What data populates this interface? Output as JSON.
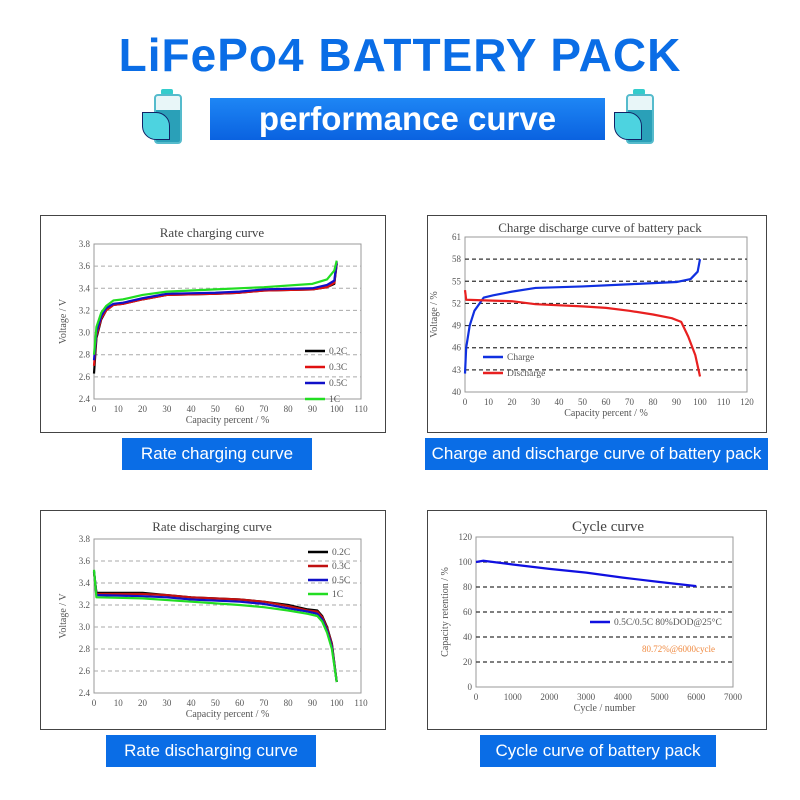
{
  "header": {
    "title": "LiFePo4 BATTERY PACK",
    "subtitle": "performance curve",
    "icon": "battery-leaf-icon"
  },
  "captions": [
    "Rate charging curve",
    "Charge and discharge curve of battery pack",
    "Rate discharging curve",
    "Cycle curve of battery pack"
  ],
  "chart_data": [
    {
      "type": "line",
      "title": "Rate charging curve",
      "xlabel": "Capacity percent / %",
      "ylabel": "Voltage / V",
      "xlim": [
        0,
        110
      ],
      "ylim": [
        2.4,
        3.8
      ],
      "xticks": [
        0,
        10,
        20,
        30,
        40,
        50,
        60,
        70,
        80,
        90,
        100,
        110
      ],
      "yticks": [
        2.4,
        2.6,
        2.8,
        3.0,
        3.2,
        3.4,
        3.6,
        3.8
      ],
      "grid": "horizontal dashed",
      "legend": "bottom-right",
      "series": [
        {
          "name": "0.2C",
          "color": "#000000",
          "points": [
            [
              0,
              2.63
            ],
            [
              1,
              2.95
            ],
            [
              3,
              3.12
            ],
            [
              5,
              3.2
            ],
            [
              8,
              3.25
            ],
            [
              12,
              3.26
            ],
            [
              20,
              3.3
            ],
            [
              30,
              3.34
            ],
            [
              50,
              3.35
            ],
            [
              60,
              3.36
            ],
            [
              70,
              3.38
            ],
            [
              90,
              3.39
            ],
            [
              96,
              3.41
            ],
            [
              99,
              3.44
            ],
            [
              100,
              3.62
            ]
          ]
        },
        {
          "name": "0.3C",
          "color": "#e01010",
          "points": [
            [
              0,
              2.7
            ],
            [
              1,
              2.97
            ],
            [
              3,
              3.13
            ],
            [
              5,
              3.2
            ],
            [
              8,
              3.25
            ],
            [
              12,
              3.26
            ],
            [
              20,
              3.3
            ],
            [
              30,
              3.34
            ],
            [
              50,
              3.35
            ],
            [
              60,
              3.36
            ],
            [
              70,
              3.38
            ],
            [
              90,
              3.39
            ],
            [
              96,
              3.41
            ],
            [
              99,
              3.45
            ],
            [
              100,
              3.63
            ]
          ]
        },
        {
          "name": "0.5C",
          "color": "#1010c8",
          "points": [
            [
              0,
              2.75
            ],
            [
              1,
              3.0
            ],
            [
              3,
              3.15
            ],
            [
              5,
              3.22
            ],
            [
              8,
              3.26
            ],
            [
              12,
              3.27
            ],
            [
              20,
              3.31
            ],
            [
              30,
              3.35
            ],
            [
              50,
              3.36
            ],
            [
              60,
              3.37
            ],
            [
              70,
              3.39
            ],
            [
              90,
              3.4
            ],
            [
              96,
              3.43
            ],
            [
              99,
              3.47
            ],
            [
              100,
              3.64
            ]
          ]
        },
        {
          "name": "1C",
          "color": "#22dd22",
          "points": [
            [
              0,
              2.8
            ],
            [
              1,
              3.05
            ],
            [
              3,
              3.18
            ],
            [
              5,
              3.24
            ],
            [
              8,
              3.29
            ],
            [
              12,
              3.3
            ],
            [
              20,
              3.34
            ],
            [
              30,
              3.37
            ],
            [
              50,
              3.39
            ],
            [
              70,
              3.41
            ],
            [
              90,
              3.44
            ],
            [
              96,
              3.48
            ],
            [
              99,
              3.56
            ],
            [
              100,
              3.65
            ]
          ]
        }
      ]
    },
    {
      "type": "line",
      "title": "Charge discharge curve of battery pack",
      "xlabel": "Capacity percent / %",
      "ylabel": "Voltage / %",
      "xlim": [
        0,
        120
      ],
      "ylim": [
        40,
        61
      ],
      "xticks": [
        0,
        10,
        20,
        30,
        40,
        50,
        60,
        70,
        80,
        90,
        100,
        110,
        120
      ],
      "yticks": [
        40,
        43,
        46,
        49,
        52,
        55,
        58,
        61
      ],
      "grid": "horizontal dashed",
      "legend": "bottom-left",
      "series": [
        {
          "name": "Charge",
          "color": "#1030e0",
          "points": [
            [
              0,
              42.5
            ],
            [
              0.5,
              46
            ],
            [
              2,
              49
            ],
            [
              4,
              51
            ],
            [
              8,
              52.8
            ],
            [
              12,
              53.1
            ],
            [
              20,
              53.6
            ],
            [
              30,
              54.1
            ],
            [
              50,
              54.3
            ],
            [
              70,
              54.6
            ],
            [
              90,
              54.9
            ],
            [
              96,
              55.3
            ],
            [
              99,
              56.3
            ],
            [
              100,
              58
            ]
          ]
        },
        {
          "name": "Discharge",
          "color": "#e82020",
          "points": [
            [
              0,
              53.8
            ],
            [
              0.5,
              52.5
            ],
            [
              10,
              52.4
            ],
            [
              20,
              52.3
            ],
            [
              30,
              51.9
            ],
            [
              50,
              51.6
            ],
            [
              60,
              51.4
            ],
            [
              70,
              51
            ],
            [
              80,
              50.5
            ],
            [
              88,
              50
            ],
            [
              92,
              49.5
            ],
            [
              95,
              47.5
            ],
            [
              98,
              45
            ],
            [
              100,
              42.1
            ]
          ]
        }
      ]
    },
    {
      "type": "line",
      "title": "Rate discharging curve",
      "xlabel": "Capacity percent / %",
      "ylabel": "Voltage / V",
      "xlim": [
        0,
        110
      ],
      "ylim": [
        2.4,
        3.8
      ],
      "xticks": [
        0,
        10,
        20,
        30,
        40,
        50,
        60,
        70,
        80,
        90,
        100,
        110
      ],
      "yticks": [
        2.4,
        2.6,
        2.8,
        3.0,
        3.2,
        3.4,
        3.6,
        3.8
      ],
      "grid": "horizontal dashed",
      "legend": "top-right",
      "series": [
        {
          "name": "0.2C",
          "color": "#000000",
          "points": [
            [
              0,
              3.5
            ],
            [
              1,
              3.31
            ],
            [
              20,
              3.31
            ],
            [
              30,
              3.29
            ],
            [
              40,
              3.27
            ],
            [
              60,
              3.25
            ],
            [
              70,
              3.23
            ],
            [
              80,
              3.2
            ],
            [
              88,
              3.16
            ],
            [
              92,
              3.15
            ],
            [
              94,
              3.1
            ],
            [
              96,
              3.0
            ],
            [
              98,
              2.85
            ],
            [
              100,
              2.5
            ]
          ]
        },
        {
          "name": "0.3C",
          "color": "#c01010",
          "points": [
            [
              0,
              3.5
            ],
            [
              1,
              3.3
            ],
            [
              20,
              3.3
            ],
            [
              30,
              3.29
            ],
            [
              40,
              3.27
            ],
            [
              60,
              3.25
            ],
            [
              70,
              3.23
            ],
            [
              80,
              3.19
            ],
            [
              88,
              3.15
            ],
            [
              92,
              3.14
            ],
            [
              94,
              3.09
            ],
            [
              96,
              2.99
            ],
            [
              98,
              2.84
            ],
            [
              100,
              2.5
            ]
          ]
        },
        {
          "name": "0.5C",
          "color": "#1010c8",
          "points": [
            [
              0,
              3.51
            ],
            [
              1,
              3.29
            ],
            [
              20,
              3.28
            ],
            [
              30,
              3.27
            ],
            [
              40,
              3.25
            ],
            [
              60,
              3.23
            ],
            [
              70,
              3.21
            ],
            [
              80,
              3.17
            ],
            [
              88,
              3.14
            ],
            [
              92,
              3.12
            ],
            [
              94,
              3.07
            ],
            [
              96,
              2.97
            ],
            [
              98,
              2.82
            ],
            [
              100,
              2.5
            ]
          ]
        },
        {
          "name": "1C",
          "color": "#22dd22",
          "points": [
            [
              0,
              3.52
            ],
            [
              1,
              3.27
            ],
            [
              20,
              3.26
            ],
            [
              40,
              3.23
            ],
            [
              60,
              3.2
            ],
            [
              70,
              3.18
            ],
            [
              80,
              3.15
            ],
            [
              88,
              3.12
            ],
            [
              92,
              3.1
            ],
            [
              94,
              3.05
            ],
            [
              96,
              2.95
            ],
            [
              98,
              2.8
            ],
            [
              100,
              2.5
            ]
          ]
        }
      ]
    },
    {
      "type": "line",
      "title": "Cycle curve",
      "xlabel": "Cycle / number",
      "ylabel": "Capacity retention / %",
      "xlim": [
        0,
        7000
      ],
      "ylim": [
        0,
        120
      ],
      "xticks": [
        0,
        1000,
        2000,
        3000,
        4000,
        5000,
        6000,
        7000
      ],
      "yticks": [
        0,
        20,
        40,
        60,
        80,
        100,
        120
      ],
      "grid": "horizontal dashed",
      "legend": "center-right",
      "annotation": {
        "text": "80.72%@6000cycle",
        "color": "#f08a40"
      },
      "series": [
        {
          "name": "0.5C/0.5C  80%DOD@25°C",
          "color": "#1010e0",
          "points": [
            [
              0,
              100
            ],
            [
              200,
              101
            ],
            [
              1000,
              98
            ],
            [
              2000,
              94.5
            ],
            [
              3000,
              91.5
            ],
            [
              4000,
              87.5
            ],
            [
              5000,
              84
            ],
            [
              6000,
              80.72
            ]
          ]
        }
      ]
    }
  ]
}
